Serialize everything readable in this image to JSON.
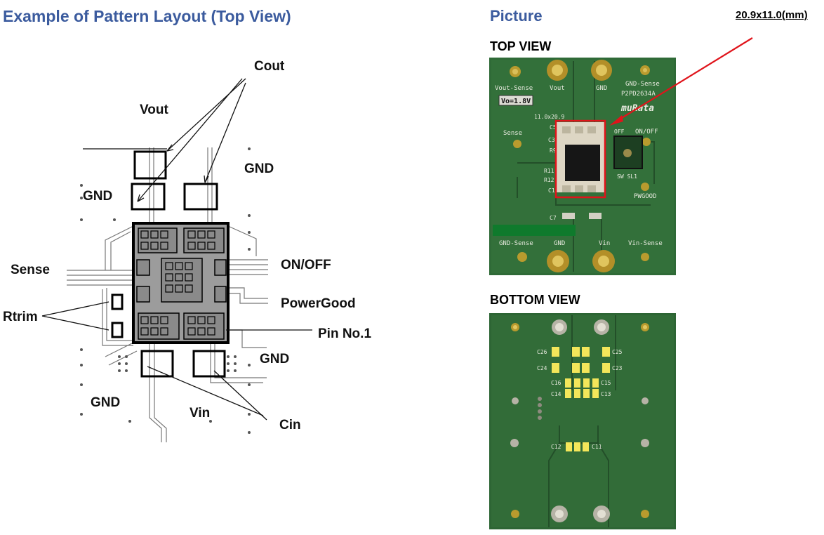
{
  "layout_section": {
    "title": "Example of Pattern Layout (Top View)",
    "labels": {
      "cout": "Cout",
      "vout": "Vout",
      "gnd_top_right": "GND",
      "gnd_left": "GND",
      "sense": "Sense",
      "on_off": "ON/OFF",
      "powergood": "PowerGood",
      "rtrim": "Rtrim",
      "pin_no1": "Pin No.1",
      "gnd_bottom_right": "GND",
      "gnd_bottom_left": "GND",
      "vin": "Vin",
      "cin": "Cin"
    }
  },
  "picture_section": {
    "title": "Picture",
    "dimension": "20.9x11.0(mm)",
    "top_view_label": "TOP VIEW",
    "bottom_view_label": "BOTTOM VIEW"
  },
  "top_board": {
    "silk": {
      "vout_sense": "Vout-Sense",
      "vout": "Vout",
      "gnd": "GND",
      "gnd_sense": "GND-Sense",
      "part": "P2PD2634A",
      "brand": "muRata",
      "vo": "Vo=1.8V",
      "size": "11.0x20.9",
      "sense": "Sense",
      "off": "OFF",
      "on_off": "ON/OFF",
      "c5": "C5",
      "c3": "C3",
      "r9": "R9",
      "r11": "R11",
      "r12": "R12",
      "c1": "C1",
      "c7": "C7",
      "sw1": "SW SL1",
      "pwgood": "PWGOOD",
      "gnd_sense_b": "GND-Sense",
      "gnd_b": "GND",
      "vin": "Vin",
      "vin_sense": "Vin-Sense"
    }
  },
  "bottom_board": {
    "silk": {
      "c26": "C26",
      "c25": "C25",
      "c24": "C24",
      "c23": "C23",
      "c16": "C16",
      "c15": "C15",
      "c14": "C14",
      "c13": "C13",
      "c12": "C12",
      "c11": "C11"
    }
  },
  "colors": {
    "title": "#3b5b9e",
    "pcb": "#2f6a37",
    "callout": "#e0141b",
    "pad": "#f3e65a"
  }
}
